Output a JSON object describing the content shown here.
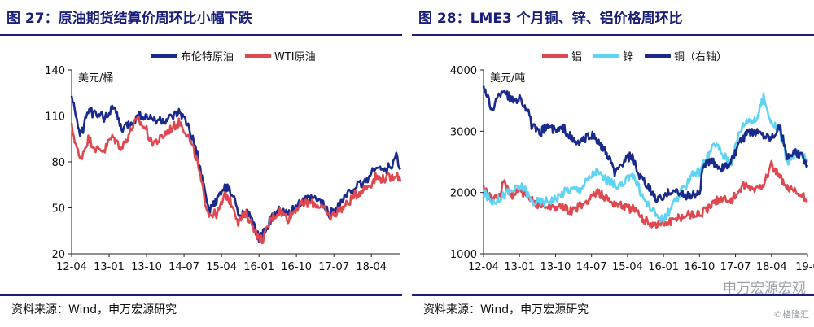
{
  "left": {
    "title": "图 27：原油期货结算价周环比小幅下跌",
    "source": "资料来源：Wind，申万宏源研究",
    "chart_data": {
      "type": "line",
      "unit_label": "美元/桶",
      "ylim": [
        20,
        140
      ],
      "yticks": [
        20,
        50,
        80,
        110,
        140
      ],
      "xlim": [
        "2012-04",
        "2018-11"
      ],
      "xticks": [
        "12-04",
        "13-01",
        "13-10",
        "14-07",
        "15-04",
        "16-01",
        "16-10",
        "17-07",
        "18-04"
      ],
      "legend": "top-right",
      "series": [
        {
          "name": "布伦特原油",
          "color": "#1a2a8c",
          "points": [
            [
              "2012-04",
              122
            ],
            [
              "2012-05",
              112
            ],
            [
              "2012-06",
              95
            ],
            [
              "2012-07",
              104
            ],
            [
              "2012-08",
              114
            ],
            [
              "2012-09",
              112
            ],
            [
              "2012-10",
              110
            ],
            [
              "2012-12",
              109
            ],
            [
              "2013-01",
              112
            ],
            [
              "2013-02",
              117
            ],
            [
              "2013-04",
              101
            ],
            [
              "2013-05",
              103
            ],
            [
              "2013-07",
              107
            ],
            [
              "2013-08",
              111
            ],
            [
              "2013-10",
              109
            ],
            [
              "2014-01",
              107
            ],
            [
              "2014-03",
              107
            ],
            [
              "2014-06",
              112
            ],
            [
              "2014-08",
              103
            ],
            [
              "2014-10",
              87
            ],
            [
              "2014-12",
              60
            ],
            [
              "2015-01",
              48
            ],
            [
              "2015-03",
              56
            ],
            [
              "2015-05",
              64
            ],
            [
              "2015-07",
              57
            ],
            [
              "2015-08",
              45
            ],
            [
              "2015-10",
              48
            ],
            [
              "2015-12",
              37
            ],
            [
              "2016-01",
              30
            ],
            [
              "2016-02",
              33
            ],
            [
              "2016-04",
              43
            ],
            [
              "2016-06",
              49
            ],
            [
              "2016-08",
              45
            ],
            [
              "2016-10",
              51
            ],
            [
              "2016-12",
              55
            ],
            [
              "2017-02",
              56
            ],
            [
              "2017-04",
              54
            ],
            [
              "2017-06",
              46
            ],
            [
              "2017-08",
              52
            ],
            [
              "2017-10",
              58
            ],
            [
              "2017-12",
              64
            ],
            [
              "2018-02",
              66
            ],
            [
              "2018-04",
              72
            ],
            [
              "2018-05",
              78
            ],
            [
              "2018-07",
              74
            ],
            [
              "2018-09",
              78
            ],
            [
              "2018-10",
              84
            ],
            [
              "2018-11",
              75
            ]
          ]
        },
        {
          "name": "WTI原油",
          "color": "#e0484f",
          "points": [
            [
              "2012-04",
              103
            ],
            [
              "2012-05",
              92
            ],
            [
              "2012-06",
              81
            ],
            [
              "2012-07",
              88
            ],
            [
              "2012-08",
              95
            ],
            [
              "2012-09",
              92
            ],
            [
              "2012-10",
              88
            ],
            [
              "2012-12",
              88
            ],
            [
              "2013-01",
              94
            ],
            [
              "2013-02",
              96
            ],
            [
              "2013-04",
              89
            ],
            [
              "2013-05",
              94
            ],
            [
              "2013-07",
              105
            ],
            [
              "2013-08",
              107
            ],
            [
              "2013-10",
              101
            ],
            [
              "2013-11",
              93
            ],
            [
              "2014-01",
              94
            ],
            [
              "2014-03",
              100
            ],
            [
              "2014-06",
              106
            ],
            [
              "2014-08",
              97
            ],
            [
              "2014-10",
              82
            ],
            [
              "2014-12",
              55
            ],
            [
              "2015-01",
              46
            ],
            [
              "2015-03",
              46
            ],
            [
              "2015-05",
              59
            ],
            [
              "2015-07",
              50
            ],
            [
              "2015-08",
              41
            ],
            [
              "2015-10",
              46
            ],
            [
              "2015-12",
              36
            ],
            [
              "2016-01",
              29
            ],
            [
              "2016-02",
              30
            ],
            [
              "2016-04",
              43
            ],
            [
              "2016-06",
              48
            ],
            [
              "2016-08",
              43
            ],
            [
              "2016-10",
              50
            ],
            [
              "2016-12",
              53
            ],
            [
              "2017-02",
              53
            ],
            [
              "2017-04",
              51
            ],
            [
              "2017-06",
              44
            ],
            [
              "2017-08",
              48
            ],
            [
              "2017-10",
              52
            ],
            [
              "2017-12",
              58
            ],
            [
              "2018-02",
              62
            ],
            [
              "2018-04",
              66
            ],
            [
              "2018-05",
              70
            ],
            [
              "2018-07",
              69
            ],
            [
              "2018-09",
              70
            ],
            [
              "2018-10",
              73
            ],
            [
              "2018-11",
              67
            ]
          ]
        }
      ]
    }
  },
  "right": {
    "title": "图 28：LME3 个月铜、锌、铝价格周环比",
    "source": "资料来源：Wind，申万宏源研究",
    "chart_data": {
      "type": "line",
      "unit_label": "美元/吨",
      "ylim": [
        1000,
        4000
      ],
      "yticks": [
        1000,
        2000,
        3000,
        4000
      ],
      "xlim": [
        "2012-04",
        "2019-01"
      ],
      "xticks": [
        "12-04",
        "13-01",
        "13-10",
        "14-07",
        "15-04",
        "16-01",
        "16-10",
        "17-07",
        "18-04",
        "19-0"
      ],
      "legend": "top",
      "series": [
        {
          "name": "铝",
          "color": "#e0484f",
          "points": [
            [
              "2012-04",
              2050
            ],
            [
              "2012-06",
              1900
            ],
            [
              "2012-08",
              1950
            ],
            [
              "2012-09",
              2150
            ],
            [
              "2012-11",
              1950
            ],
            [
              "2013-01",
              2050
            ],
            [
              "2013-03",
              1900
            ],
            [
              "2013-06",
              1800
            ],
            [
              "2013-09",
              1780
            ],
            [
              "2013-12",
              1750
            ],
            [
              "2014-02",
              1700
            ],
            [
              "2014-05",
              1800
            ],
            [
              "2014-08",
              2000
            ],
            [
              "2014-10",
              1950
            ],
            [
              "2014-12",
              1850
            ],
            [
              "2015-03",
              1780
            ],
            [
              "2015-06",
              1700
            ],
            [
              "2015-08",
              1550
            ],
            [
              "2015-11",
              1480
            ],
            [
              "2016-01",
              1500
            ],
            [
              "2016-04",
              1550
            ],
            [
              "2016-07",
              1650
            ],
            [
              "2016-10",
              1650
            ],
            [
              "2016-12",
              1730
            ],
            [
              "2017-03",
              1900
            ],
            [
              "2017-06",
              1880
            ],
            [
              "2017-09",
              2100
            ],
            [
              "2017-12",
              2050
            ],
            [
              "2018-02",
              2150
            ],
            [
              "2018-04",
              2450
            ],
            [
              "2018-06",
              2250
            ],
            [
              "2018-08",
              2050
            ],
            [
              "2018-10",
              2000
            ],
            [
              "2018-12",
              1920
            ],
            [
              "2019-01",
              1850
            ]
          ]
        },
        {
          "name": "锌",
          "color": "#5fd3f3",
          "points": [
            [
              "2012-04",
              2000
            ],
            [
              "2012-06",
              1850
            ],
            [
              "2012-08",
              1900
            ],
            [
              "2012-10",
              2000
            ],
            [
              "2012-12",
              2050
            ],
            [
              "2013-02",
              2100
            ],
            [
              "2013-04",
              1850
            ],
            [
              "2013-07",
              1850
            ],
            [
              "2013-10",
              1900
            ],
            [
              "2014-01",
              2050
            ],
            [
              "2014-04",
              2050
            ],
            [
              "2014-06",
              2200
            ],
            [
              "2014-08",
              2350
            ],
            [
              "2014-10",
              2250
            ],
            [
              "2014-12",
              2150
            ],
            [
              "2015-03",
              2100
            ],
            [
              "2015-05",
              2350
            ],
            [
              "2015-08",
              1900
            ],
            [
              "2015-11",
              1650
            ],
            [
              "2016-01",
              1550
            ],
            [
              "2016-03",
              1750
            ],
            [
              "2016-06",
              2050
            ],
            [
              "2016-08",
              2300
            ],
            [
              "2016-10",
              2350
            ],
            [
              "2016-12",
              2600
            ],
            [
              "2017-02",
              2800
            ],
            [
              "2017-04",
              2600
            ],
            [
              "2017-06",
              2500
            ],
            [
              "2017-08",
              3000
            ],
            [
              "2017-10",
              3200
            ],
            [
              "2017-12",
              3150
            ],
            [
              "2018-02",
              3550
            ],
            [
              "2018-04",
              3150
            ],
            [
              "2018-06",
              3000
            ],
            [
              "2018-08",
              2500
            ],
            [
              "2018-10",
              2650
            ],
            [
              "2018-12",
              2600
            ],
            [
              "2019-01",
              2500
            ]
          ]
        },
        {
          "name": "铜（右轴）",
          "color": "#1a2a8c",
          "points": [
            [
              "2012-04",
              3750
            ],
            [
              "2012-06",
              3350
            ],
            [
              "2012-08",
              3600
            ],
            [
              "2012-09",
              3700
            ],
            [
              "2012-11",
              3500
            ],
            [
              "2013-01",
              3550
            ],
            [
              "2013-03",
              3350
            ],
            [
              "2013-04",
              3100
            ],
            [
              "2013-06",
              2950
            ],
            [
              "2013-08",
              3100
            ],
            [
              "2013-10",
              3000
            ],
            [
              "2013-12",
              3050
            ],
            [
              "2014-03",
              2800
            ],
            [
              "2014-05",
              2850
            ],
            [
              "2014-07",
              2950
            ],
            [
              "2014-09",
              2800
            ],
            [
              "2014-11",
              2600
            ],
            [
              "2015-01",
              2300
            ],
            [
              "2015-03",
              2500
            ],
            [
              "2015-05",
              2600
            ],
            [
              "2015-07",
              2250
            ],
            [
              "2015-09",
              2100
            ],
            [
              "2015-11",
              1900
            ],
            [
              "2016-01",
              1900
            ],
            [
              "2016-03",
              2050
            ],
            [
              "2016-06",
              1950
            ],
            [
              "2016-08",
              1950
            ],
            [
              "2016-10",
              2000
            ],
            [
              "2016-11",
              2450
            ],
            [
              "2017-01",
              2500
            ],
            [
              "2017-04",
              2400
            ],
            [
              "2017-06",
              2500
            ],
            [
              "2017-08",
              2800
            ],
            [
              "2017-10",
              2950
            ],
            [
              "2017-12",
              3000
            ],
            [
              "2018-02",
              2950
            ],
            [
              "2018-04",
              2900
            ],
            [
              "2018-06",
              3100
            ],
            [
              "2018-08",
              2550
            ],
            [
              "2018-10",
              2650
            ],
            [
              "2018-12",
              2550
            ],
            [
              "2019-01",
              2450
            ]
          ]
        }
      ]
    }
  },
  "watermark": "申万宏源宏观",
  "watermark2": "©格隆汇"
}
